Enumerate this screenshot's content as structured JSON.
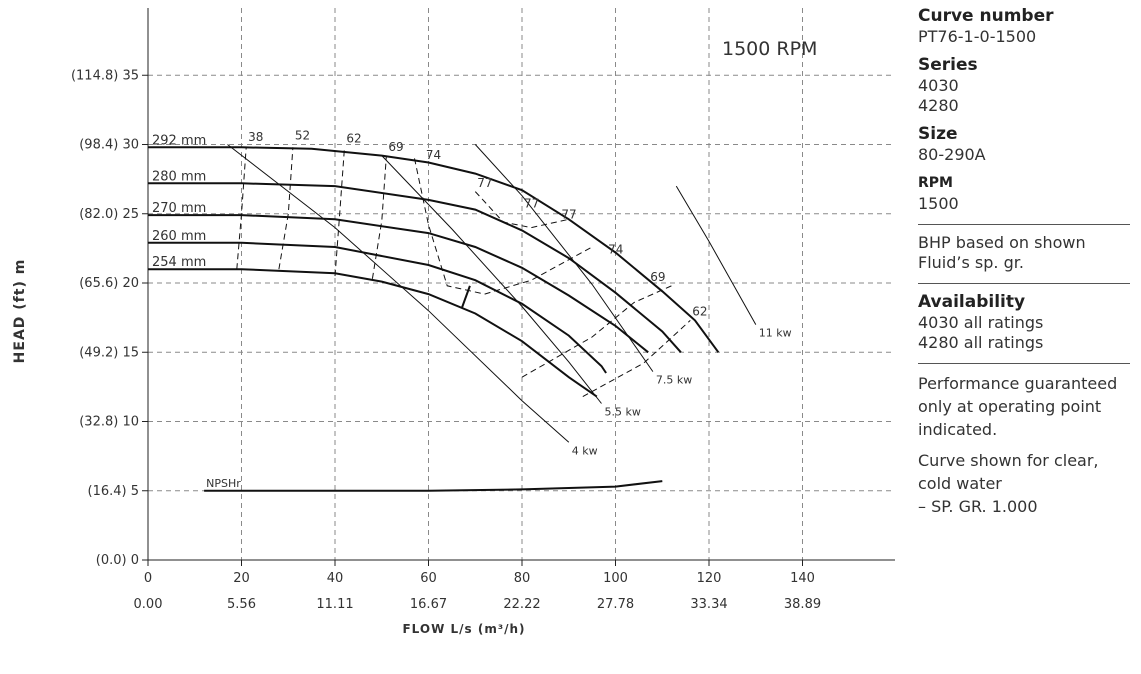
{
  "chart_data": {
    "type": "line",
    "title": "1500 RPM",
    "xlabel": "FLOW L/s (m³/h)",
    "ylabel": "HEAD (ft) m",
    "xlim": [
      0,
      160
    ],
    "ylim": [
      0,
      40
    ],
    "x_ticks": [
      "0",
      "20",
      "40",
      "60",
      "80",
      "100",
      "120",
      "140"
    ],
    "x_ticks_secondary": [
      "0.00",
      "5.56",
      "11.11",
      "16.67",
      "22.22",
      "27.78",
      "33.34",
      "38.89"
    ],
    "y_ticks": [
      "(0.0) 0",
      "(16.4) 5",
      "(32.8) 10",
      "(49.2) 15",
      "(65.6) 20",
      "(82.0) 25",
      "(98.4) 30",
      "(114.8) 35"
    ],
    "grid": true,
    "series": [
      {
        "name": "292 mm",
        "x": [
          0,
          20,
          35,
          50,
          60,
          70,
          80,
          90,
          100,
          110,
          117,
          122
        ],
        "y": [
          29.8,
          29.8,
          29.7,
          29.2,
          28.7,
          27.9,
          26.7,
          24.6,
          22.2,
          19.4,
          17.3,
          15.0
        ]
      },
      {
        "name": "280 mm",
        "x": [
          0,
          20,
          40,
          60,
          70,
          80,
          90,
          100,
          110,
          114
        ],
        "y": [
          27.2,
          27.2,
          27.0,
          26.0,
          25.3,
          23.8,
          21.8,
          19.3,
          16.5,
          15.0
        ]
      },
      {
        "name": "270 mm",
        "x": [
          0,
          20,
          40,
          60,
          70,
          80,
          90,
          100,
          107
        ],
        "y": [
          24.9,
          24.9,
          24.6,
          23.6,
          22.6,
          21.1,
          19.1,
          16.9,
          15.0
        ]
      },
      {
        "name": "260 mm",
        "x": [
          0,
          20,
          40,
          60,
          70,
          80,
          90,
          97,
          98
        ],
        "y": [
          22.9,
          22.9,
          22.6,
          21.3,
          20.2,
          18.5,
          16.2,
          14.0,
          13.5
        ]
      },
      {
        "name": "254 mm",
        "x": [
          0,
          20,
          40,
          50,
          60,
          70,
          80,
          90,
          96
        ],
        "y": [
          21.0,
          21.0,
          20.7,
          20.1,
          19.2,
          17.8,
          15.8,
          13.2,
          11.8
        ]
      },
      {
        "name": "NPSHr",
        "x": [
          12,
          30,
          60,
          80,
          100,
          110
        ],
        "y": [
          5.0,
          5.0,
          5.0,
          5.1,
          5.3,
          5.7
        ]
      },
      {
        "name": "4 kw",
        "x": [
          17,
          40,
          60,
          80,
          90
        ],
        "y": [
          30.0,
          24.0,
          18.0,
          11.5,
          8.5
        ]
      },
      {
        "name": "5.5 kw",
        "x": [
          50,
          65,
          80,
          90,
          97
        ],
        "y": [
          29.2,
          23.9,
          18.3,
          14.3,
          11.3
        ]
      },
      {
        "name": "7.5 kw",
        "x": [
          70,
          80,
          95,
          108
        ],
        "y": [
          30.0,
          26.3,
          19.9,
          13.6
        ]
      },
      {
        "name": "11 kw",
        "x": [
          113,
          120,
          130
        ],
        "y": [
          27.0,
          23.0,
          17.0
        ]
      }
    ],
    "efficiency_labels": [
      "38",
      "52",
      "62",
      "69",
      "74",
      "77",
      "77",
      "77",
      "74",
      "69",
      "62"
    ],
    "operating_point": {
      "x": 68,
      "y": 19.0
    },
    "annotations": [
      "292 mm",
      "280 mm",
      "270 mm",
      "260 mm",
      "254 mm",
      "NPSHr",
      "4 kw",
      "5.5 kw",
      "7.5 kw",
      "11 kw"
    ]
  },
  "sidebar": {
    "curve_number_label": "Curve number",
    "curve_number_value": "PT76-1-0-1500",
    "series_label": "Series",
    "series_values": [
      "4030",
      "4280"
    ],
    "size_label": "Size",
    "size_value": "80-290A",
    "rpm_label": "RPM",
    "rpm_value": "1500",
    "bhp_note_1": "BHP based on shown",
    "bhp_note_2": "Fluid’s sp. gr.",
    "availability_label": "Availability",
    "availability_values": [
      "4030 all ratings",
      "4280  all ratings"
    ],
    "performance_note": "Performance guaranteed only at operating point indicated.",
    "curve_note_1": "Curve shown for clear, cold water",
    "curve_note_2": "– SP. GR. 1.000"
  },
  "colors": {
    "curve": "#111111",
    "grid": "#8a8a8a",
    "text": "#333333"
  }
}
